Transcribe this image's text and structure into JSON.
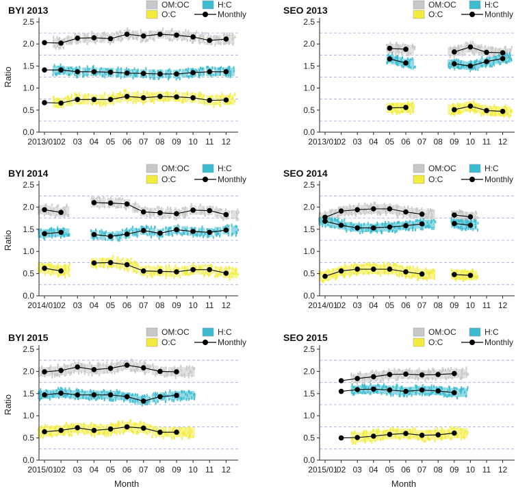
{
  "figure": {
    "y_axis_label": "Ratio",
    "x_axis_label": "Month"
  },
  "legend": [
    {
      "label": "OM:OC",
      "color": "#c8c8c8",
      "kind": "box"
    },
    {
      "label": "H:C",
      "color": "#3bbccf",
      "kind": "box"
    },
    {
      "label": "O:C",
      "color": "#f2ec3c",
      "kind": "box"
    },
    {
      "label": "Monthly",
      "color": "#000000",
      "kind": "line-marker"
    }
  ],
  "chart_data": [
    {
      "type": "scatter",
      "title": "BYI 2013",
      "xlabel": "",
      "ylabel": "Ratio",
      "ylim": [
        0,
        2.5
      ],
      "yticks": [
        "0.0",
        "0.5",
        "1.0",
        "1.5",
        "2.0",
        "2.5"
      ],
      "xticklabels": [
        "2013/01",
        "02",
        "03",
        "04",
        "05",
        "06",
        "07",
        "08",
        "09",
        "10",
        "11",
        "12"
      ],
      "months": [
        1,
        2,
        3,
        4,
        5,
        6,
        7,
        8,
        9,
        10,
        11,
        12
      ],
      "observed_months": [
        1.7,
        2.0,
        2.5,
        3.0,
        3.5,
        4.0,
        4.5,
        5.0,
        5.5,
        6.0,
        6.5,
        7.0,
        7.5,
        8.0,
        8.5,
        9.0,
        9.5,
        10.0,
        10.5,
        11.0,
        11.5,
        12.0,
        12.3
      ],
      "series": [
        {
          "name": "OM:OC",
          "months": [
            1,
            2,
            3,
            4,
            5,
            6,
            7,
            8,
            9,
            10,
            11,
            12
          ],
          "values": [
            2.03,
            2.02,
            2.13,
            2.14,
            2.12,
            2.22,
            2.18,
            2.22,
            2.2,
            2.16,
            2.08,
            2.11
          ]
        },
        {
          "name": "H:C",
          "months": [
            1,
            2,
            3,
            4,
            5,
            6,
            7,
            8,
            9,
            10,
            11,
            12
          ],
          "values": [
            1.41,
            1.41,
            1.37,
            1.37,
            1.36,
            1.34,
            1.33,
            1.32,
            1.32,
            1.35,
            1.37,
            1.37
          ]
        },
        {
          "name": "O:C",
          "months": [
            1,
            2,
            3,
            4,
            5,
            6,
            7,
            8,
            9,
            10,
            11,
            12
          ],
          "values": [
            0.67,
            0.66,
            0.74,
            0.74,
            0.74,
            0.81,
            0.78,
            0.81,
            0.8,
            0.78,
            0.72,
            0.73
          ]
        }
      ]
    },
    {
      "type": "scatter",
      "title": "SEO 2013",
      "xlabel": "",
      "ylabel": "",
      "ylim": [
        0,
        2.5
      ],
      "yticks": [
        "0.0",
        "0.5",
        "1.0",
        "1.5",
        "2.0",
        "2.5"
      ],
      "xticklabels": [
        "2013/01",
        "02",
        "03",
        "04",
        "05",
        "06",
        "07",
        "08",
        "09",
        "10",
        "11",
        "12"
      ],
      "months": [
        1,
        2,
        3,
        4,
        5,
        6,
        7,
        8,
        9,
        10,
        11,
        12
      ],
      "observed_months": [
        5.0,
        5.3,
        5.6,
        6.0,
        6.3,
        8.8,
        9.1,
        9.4,
        9.8,
        10.1,
        10.4,
        10.8,
        11.2,
        11.6,
        12.0,
        12.3
      ],
      "series": [
        {
          "name": "OM:OC",
          "months": [
            5,
            6,
            9,
            10,
            11,
            12
          ],
          "values": [
            1.9,
            1.88,
            1.82,
            1.93,
            1.81,
            1.8
          ]
        },
        {
          "name": "H:C",
          "months": [
            5,
            6,
            9,
            10,
            11,
            12
          ],
          "values": [
            1.66,
            1.57,
            1.55,
            1.5,
            1.6,
            1.67
          ]
        },
        {
          "name": "O:C",
          "months": [
            5,
            6,
            9,
            10,
            11,
            12
          ],
          "values": [
            0.55,
            0.56,
            0.51,
            0.59,
            0.49,
            0.47
          ]
        }
      ]
    },
    {
      "type": "scatter",
      "title": "BYI 2014",
      "xlabel": "",
      "ylabel": "Ratio",
      "ylim": [
        0,
        2.5
      ],
      "yticks": [
        "0.0",
        "0.5",
        "1.0",
        "1.5",
        "2.0",
        "2.5"
      ],
      "xticklabels": [
        "2014/01",
        "02",
        "03",
        "04",
        "05",
        "06",
        "07",
        "08",
        "09",
        "10",
        "11",
        "12"
      ],
      "months": [
        1,
        2,
        3,
        4,
        5,
        6,
        7,
        8,
        9,
        10,
        11,
        12
      ],
      "observed_months": [
        0.8,
        1.2,
        1.6,
        2.0,
        2.3,
        4.0,
        4.5,
        5.0,
        5.5,
        6.0,
        6.5,
        7.0,
        7.5,
        8.0,
        8.5,
        9.0,
        9.5,
        10.0,
        10.5,
        11.0,
        11.5,
        12.0,
        12.5
      ],
      "series": [
        {
          "name": "OM:OC",
          "months": [
            1,
            2,
            4,
            5,
            6,
            7,
            8,
            9,
            10,
            11,
            12
          ],
          "values": [
            1.94,
            1.88,
            2.1,
            2.09,
            2.07,
            1.89,
            1.87,
            1.85,
            1.93,
            1.92,
            1.83
          ]
        },
        {
          "name": "H:C",
          "months": [
            1,
            2,
            4,
            5,
            6,
            7,
            8,
            9,
            10,
            11,
            12
          ],
          "values": [
            1.4,
            1.43,
            1.38,
            1.34,
            1.39,
            1.47,
            1.41,
            1.49,
            1.45,
            1.43,
            1.48
          ]
        },
        {
          "name": "O:C",
          "months": [
            1,
            2,
            4,
            5,
            6,
            7,
            8,
            9,
            10,
            11,
            12
          ],
          "values": [
            0.62,
            0.56,
            0.74,
            0.75,
            0.7,
            0.56,
            0.55,
            0.54,
            0.59,
            0.59,
            0.51
          ]
        }
      ]
    },
    {
      "type": "scatter",
      "title": "SEO 2014",
      "xlabel": "",
      "ylabel": "",
      "ylim": [
        0,
        2.5
      ],
      "yticks": [
        "0.0",
        "0.5",
        "1.0",
        "1.5",
        "2.0",
        "2.5"
      ],
      "xticklabels": [
        "2014/01",
        "02",
        "03",
        "04",
        "05",
        "06",
        "07",
        "08",
        "09",
        "10",
        "11",
        "12"
      ],
      "months": [
        1,
        2,
        3,
        4,
        5,
        6,
        7,
        8,
        9,
        10,
        11,
        12
      ],
      "observed_months": [
        0.8,
        1.2,
        1.6,
        2.0,
        2.4,
        2.8,
        3.2,
        3.6,
        4.0,
        4.4,
        4.8,
        5.2,
        5.6,
        6.0,
        6.4,
        6.8,
        7.2,
        7.6,
        9.0,
        9.3,
        9.6,
        9.9,
        10.2
      ],
      "series": [
        {
          "name": "OM:OC",
          "months": [
            1,
            2,
            3,
            4,
            5,
            6,
            7,
            9,
            10
          ],
          "values": [
            1.77,
            1.91,
            1.94,
            1.96,
            1.96,
            1.89,
            1.84,
            1.82,
            1.78
          ]
        },
        {
          "name": "H:C",
          "months": [
            1,
            2,
            3,
            4,
            5,
            6,
            7,
            9,
            10
          ],
          "values": [
            1.68,
            1.59,
            1.53,
            1.53,
            1.55,
            1.58,
            1.62,
            1.63,
            1.59
          ]
        },
        {
          "name": "O:C",
          "months": [
            1,
            2,
            3,
            4,
            5,
            6,
            7,
            9,
            10
          ],
          "values": [
            0.44,
            0.56,
            0.6,
            0.6,
            0.6,
            0.54,
            0.49,
            0.48,
            0.46
          ]
        }
      ]
    },
    {
      "type": "scatter",
      "title": "BYI 2015",
      "xlabel": "Month",
      "ylabel": "Ratio",
      "ylim": [
        0,
        2.5
      ],
      "yticks": [
        "0.0",
        "0.5",
        "1.0",
        "1.5",
        "2.0",
        "2.5"
      ],
      "xticklabels": [
        "2015/01",
        "02",
        "03",
        "04",
        "05",
        "06",
        "07",
        "08",
        "09",
        "10",
        "11",
        "12"
      ],
      "months": [
        1,
        2,
        3,
        4,
        5,
        6,
        7,
        8,
        9,
        10,
        11,
        12
      ],
      "observed_months": [
        0.8,
        1.2,
        1.6,
        2.0,
        2.4,
        2.8,
        3.2,
        3.6,
        4.0,
        4.4,
        4.8,
        5.2,
        5.6,
        6.0,
        6.4,
        6.8,
        7.2,
        7.7,
        8.2,
        8.7,
        9.1,
        9.5,
        9.9
      ],
      "series": [
        {
          "name": "OM:OC",
          "months": [
            1,
            2,
            3,
            4,
            5,
            6,
            7,
            8,
            9
          ],
          "values": [
            1.99,
            2.02,
            2.1,
            2.04,
            2.07,
            2.14,
            2.08,
            2.0,
            1.99
          ]
        },
        {
          "name": "H:C",
          "months": [
            1,
            2,
            3,
            4,
            5,
            6,
            7,
            8,
            9
          ],
          "values": [
            1.47,
            1.51,
            1.47,
            1.47,
            1.47,
            1.43,
            1.33,
            1.43,
            1.46
          ]
        },
        {
          "name": "O:C",
          "months": [
            1,
            2,
            3,
            4,
            5,
            6,
            7,
            8,
            9
          ],
          "values": [
            0.64,
            0.67,
            0.73,
            0.67,
            0.7,
            0.75,
            0.72,
            0.63,
            0.63
          ]
        }
      ]
    },
    {
      "type": "scatter",
      "title": "SEO 2015",
      "xlabel": "Month",
      "ylabel": "",
      "ylim": [
        0,
        2.5
      ],
      "yticks": [
        "0.0",
        "0.5",
        "1.0",
        "1.5",
        "2.0",
        "2.5"
      ],
      "xticklabels": [
        "2015/01",
        "02",
        "03",
        "04",
        "05",
        "06",
        "07",
        "08",
        "09",
        "10",
        "11",
        "12"
      ],
      "months": [
        1,
        2,
        3,
        4,
        5,
        6,
        7,
        8,
        9,
        10,
        11,
        12
      ],
      "observed_months": [
        2.8,
        3.2,
        3.6,
        4.0,
        4.4,
        4.8,
        5.2,
        5.6,
        6.0,
        6.4,
        6.8,
        7.2,
        7.6,
        8.0,
        8.4,
        8.8,
        9.2,
        9.6
      ],
      "series": [
        {
          "name": "OM:OC",
          "months": [
            2,
            3,
            4,
            5,
            6,
            7,
            8,
            9
          ],
          "values": [
            1.79,
            1.84,
            1.88,
            1.93,
            1.94,
            1.92,
            1.93,
            1.95
          ]
        },
        {
          "name": "H:C",
          "months": [
            2,
            3,
            4,
            5,
            6,
            7,
            8,
            9
          ],
          "values": [
            1.55,
            1.59,
            1.6,
            1.58,
            1.55,
            1.58,
            1.56,
            1.52
          ]
        },
        {
          "name": "O:C",
          "months": [
            2,
            3,
            4,
            5,
            6,
            7,
            8,
            9
          ],
          "values": [
            0.5,
            0.51,
            0.54,
            0.58,
            0.6,
            0.56,
            0.57,
            0.61
          ]
        }
      ]
    }
  ]
}
